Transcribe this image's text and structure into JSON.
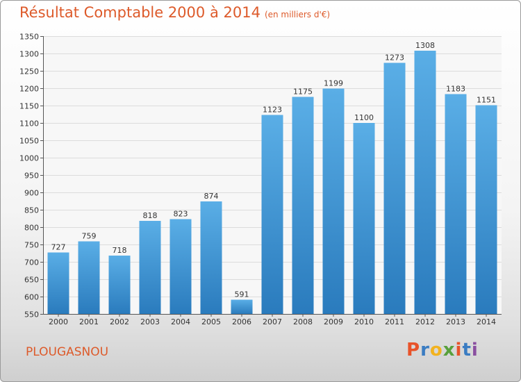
{
  "header": {
    "title": "Résultat Comptable 2000 à 2014",
    "subtitle": "(en milliers d'€)"
  },
  "footer": {
    "commune": "PLOUGASNOU",
    "logo_text": "Proxiti"
  },
  "colors": {
    "title": "#dd5a2a",
    "bar_top": "#5aaee6",
    "bar_bottom": "#2a7bbd",
    "logo": [
      "#e8532a",
      "#3a7cc2",
      "#f2b21f",
      "#58a03b",
      "#e8532a",
      "#3a7cc2",
      "#8a4fa0"
    ]
  },
  "chart_data": {
    "type": "bar",
    "title": "Résultat Comptable 2000 à 2014",
    "subtitle": "(en milliers d'€)",
    "xlabel": "",
    "ylabel": "",
    "categories": [
      "2000",
      "2001",
      "2002",
      "2003",
      "2004",
      "2005",
      "2006",
      "2007",
      "2008",
      "2009",
      "2010",
      "2011",
      "2012",
      "2013",
      "2014"
    ],
    "values": [
      727,
      759,
      718,
      818,
      823,
      874,
      591,
      1123,
      1175,
      1199,
      1100,
      1273,
      1308,
      1183,
      1151
    ],
    "ylim": [
      550,
      1350
    ],
    "yticks": [
      550,
      600,
      650,
      700,
      750,
      800,
      850,
      900,
      950,
      1000,
      1050,
      1100,
      1150,
      1200,
      1250,
      1300,
      1350
    ],
    "grid": true,
    "legend": "none"
  }
}
